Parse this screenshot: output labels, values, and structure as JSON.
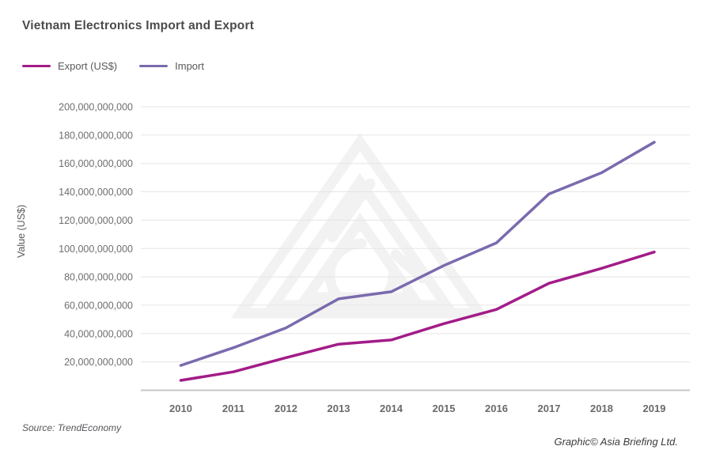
{
  "title": "Vietnam Electronics Import and Export",
  "legend": {
    "items": [
      {
        "label": "Export (US$)",
        "color": "#a21c88"
      },
      {
        "label": "Import",
        "color": "#7b6aae"
      }
    ]
  },
  "axis": {
    "y_label": "Value (US$)"
  },
  "footer": {
    "source": "Source: TrendEconomy",
    "credit": "Graphic© Asia Briefing Ltd."
  },
  "colors": {
    "export_line": "#a21c88",
    "import_line": "#7b6aae",
    "gridline": "#e5e5e6",
    "axis_line": "#c7c7c9",
    "tick_text": "#6d6e71",
    "title_text": "#4a4a4c",
    "watermark": "#f2f2f2"
  },
  "chart_data": {
    "type": "line",
    "title": "Vietnam Electronics Import and Export",
    "xlabel": "",
    "ylabel": "Value (US$)",
    "x": [
      2010,
      2011,
      2012,
      2013,
      2014,
      2015,
      2016,
      2017,
      2018,
      2019
    ],
    "series": [
      {
        "name": "Export (US$)",
        "color": "#a21c88",
        "values": [
          7000000000,
          13000000000,
          23000000000,
          32500000000,
          35500000000,
          47000000000,
          57000000000,
          75500000000,
          86000000000,
          97500000000
        ]
      },
      {
        "name": "Import",
        "color": "#7b6aae",
        "values": [
          17500000000,
          30000000000,
          44000000000,
          64500000000,
          69500000000,
          88000000000,
          104000000000,
          138500000000,
          153500000000,
          175000000000
        ]
      }
    ],
    "ylim": [
      0,
      200000000000
    ],
    "ytick_step": 20000000000,
    "grid": true,
    "legend_position": "top-left"
  }
}
